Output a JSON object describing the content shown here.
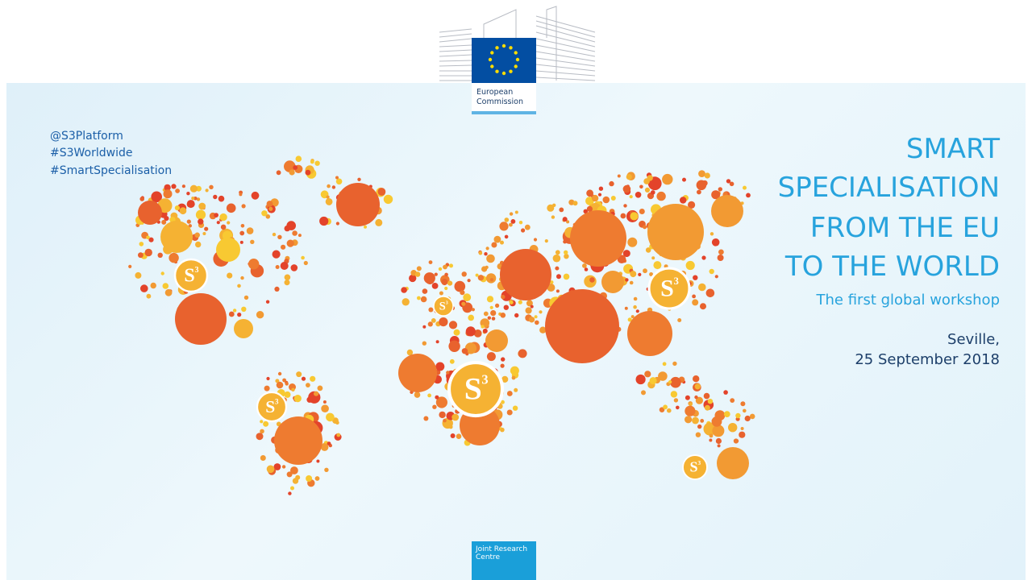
{
  "header": {
    "logo_text": "European Commission"
  },
  "social": [
    "@S3Platform",
    "#S3Worldwide",
    "#SmartSpecialisation"
  ],
  "title": [
    "SMART",
    "SPECIALISATION",
    "FROM THE EU",
    "TO THE WORLD"
  ],
  "subtitle": "The first global workshop",
  "location": "Seville,",
  "date": "25 September 2018",
  "map": {
    "badge_letter": "S",
    "badge_exponent": "3"
  },
  "footer": {
    "logo_text": "Joint Research Centre"
  }
}
